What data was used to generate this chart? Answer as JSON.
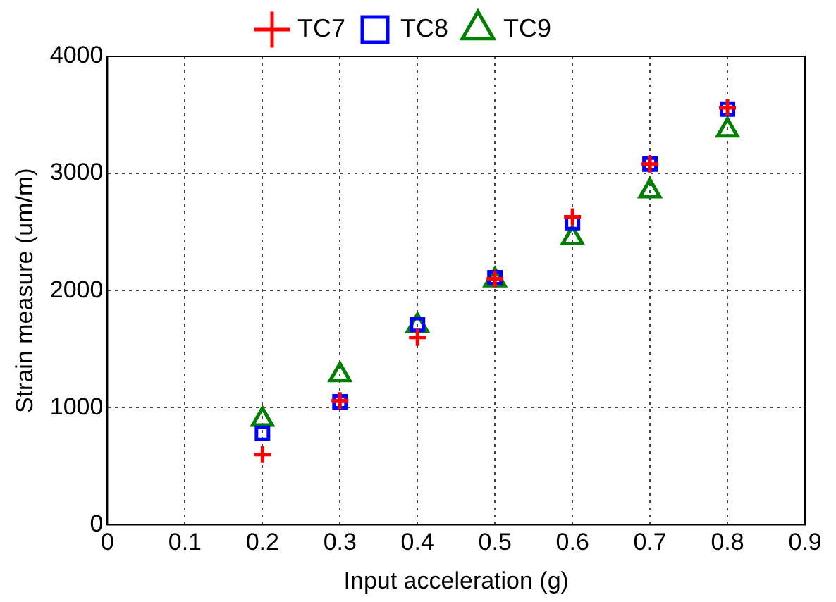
{
  "chart_data": {
    "type": "scatter",
    "xlabel": "Input acceleration (g)",
    "ylabel": "Strain measure (um/m)",
    "x": [
      0.2,
      0.3,
      0.4,
      0.5,
      0.6,
      0.7,
      0.8
    ],
    "series": [
      {
        "name": "TC7",
        "color": "#ff0000",
        "marker": "cross",
        "values": [
          600,
          1060,
          1600,
          2100,
          2630,
          3080,
          3560
        ]
      },
      {
        "name": "TC8",
        "color": "#0000ff",
        "marker": "square",
        "values": [
          780,
          1050,
          1710,
          2110,
          2580,
          3080,
          3550
        ]
      },
      {
        "name": "TC9",
        "color": "#008000",
        "marker": "triangle",
        "values": [
          900,
          1280,
          1700,
          2090,
          2450,
          2850,
          3370
        ]
      }
    ],
    "xlim": [
      0,
      0.9
    ],
    "xticks": [
      0,
      0.1,
      0.2,
      0.3,
      0.4,
      0.5,
      0.6,
      0.7,
      0.8,
      0.9
    ],
    "ylim": [
      0,
      4000
    ],
    "yticks": [
      0,
      1000,
      2000,
      3000,
      4000
    ],
    "grid": true,
    "legend": "top"
  }
}
